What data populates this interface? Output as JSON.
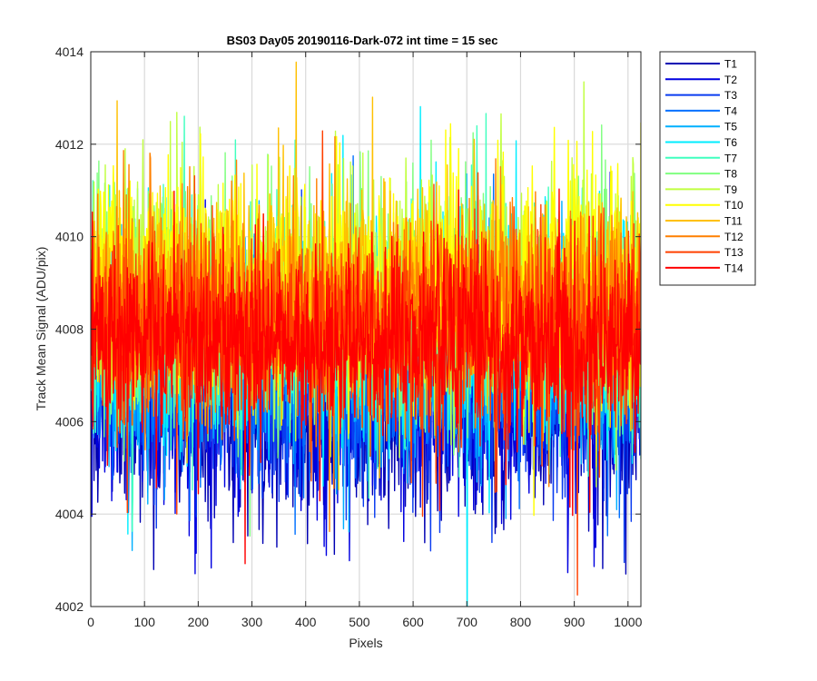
{
  "chart_data": {
    "type": "line",
    "title": "BS03 Day05 20190116-Dark-072 int time = 15 sec",
    "xlabel": "Pixels",
    "ylabel": "Track Mean Signal (ADU/pix)",
    "xlim": [
      0,
      1024
    ],
    "ylim": [
      4002,
      4014
    ],
    "xticks": [
      0,
      100,
      200,
      300,
      400,
      500,
      600,
      700,
      800,
      900,
      1000
    ],
    "yticks": [
      4002,
      4004,
      4006,
      4008,
      4010,
      4012,
      4014
    ],
    "grid": true,
    "legend_position": "outside-top-right",
    "n_points": 1024,
    "series": [
      {
        "name": "T1",
        "color": "#0000b3",
        "mean": 4006.2,
        "noise": 1.1
      },
      {
        "name": "T2",
        "color": "#0000e0",
        "mean": 4006.6,
        "noise": 1.1
      },
      {
        "name": "T3",
        "color": "#0a3cf0",
        "mean": 4006.9,
        "noise": 1.1
      },
      {
        "name": "T4",
        "color": "#0070ff",
        "mean": 4007.2,
        "noise": 1.1
      },
      {
        "name": "T5",
        "color": "#00b0ff",
        "mean": 4007.5,
        "noise": 1.1
      },
      {
        "name": "T6",
        "color": "#00eeff",
        "mean": 4007.9,
        "noise": 1.2
      },
      {
        "name": "T7",
        "color": "#40ffbf",
        "mean": 4008.2,
        "noise": 1.2
      },
      {
        "name": "T8",
        "color": "#80ff80",
        "mean": 4008.5,
        "noise": 1.2
      },
      {
        "name": "T9",
        "color": "#c0ff40",
        "mean": 4008.8,
        "noise": 1.2
      },
      {
        "name": "T10",
        "color": "#ffff00",
        "mean": 4009.0,
        "noise": 1.2
      },
      {
        "name": "T11",
        "color": "#ffc000",
        "mean": 4008.7,
        "noise": 1.1
      },
      {
        "name": "T12",
        "color": "#ff8000",
        "mean": 4008.3,
        "noise": 1.1
      },
      {
        "name": "T13",
        "color": "#ff4000",
        "mean": 4008.0,
        "noise": 1.1
      },
      {
        "name": "T14",
        "color": "#ff0000",
        "mean": 4007.7,
        "noise": 1.0
      }
    ]
  }
}
